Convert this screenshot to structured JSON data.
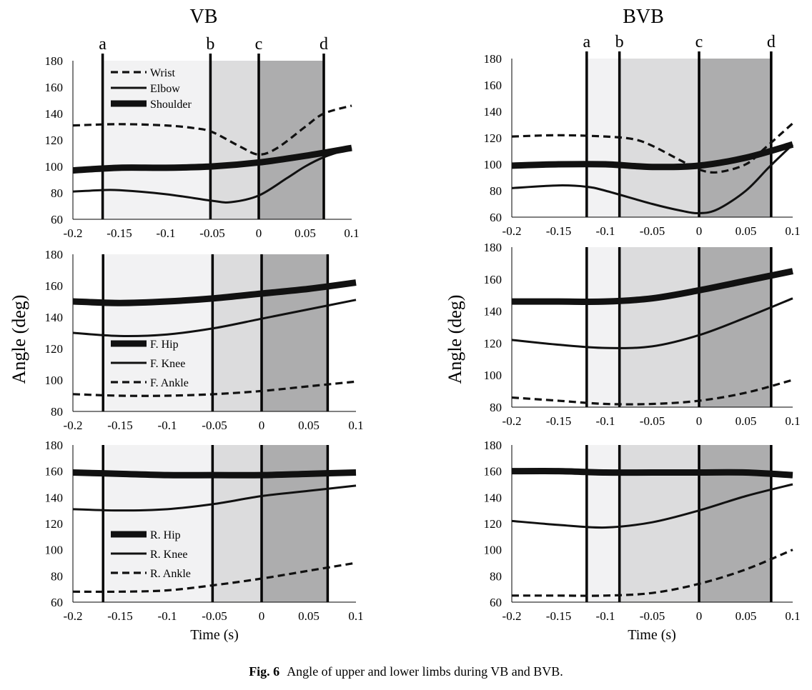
{
  "caption": {
    "label": "Fig. 6",
    "text": "Angle of upper and lower limbs during VB and BVB."
  },
  "column_titles": {
    "left": "VB",
    "right": "BVB"
  },
  "shared_labels": {
    "ylabel": "Angle (deg)",
    "xlabel": "Time (s)"
  },
  "phase_marker_labels": [
    "a",
    "b",
    "c",
    "d"
  ],
  "phase_colors": [
    "#f2f2f3",
    "#dcdcdd",
    "#adadae"
  ],
  "chart_data": [
    {
      "id": "vb-upper",
      "type": "line",
      "xlim": [
        -0.2,
        0.1
      ],
      "ylim": [
        60,
        180
      ],
      "xticks": [
        -0.2,
        -0.15,
        -0.1,
        -0.05,
        0,
        0.05,
        0.1
      ],
      "xtick_labels": [
        "-0.2",
        "-0.15",
        "-0.1",
        "-0.05",
        "0",
        "0.05",
        "0.1"
      ],
      "yticks": [
        60,
        80,
        100,
        120,
        140,
        160,
        180
      ],
      "phase_markers": [
        -0.168,
        -0.052,
        0,
        0.07
      ],
      "show_marker_labels": true,
      "legend": {
        "position": "top-left"
      },
      "series": [
        {
          "name": "Wrist",
          "style": "dashed",
          "x": [
            -0.2,
            -0.15,
            -0.1,
            -0.07,
            -0.05,
            -0.02,
            0,
            0.02,
            0.05,
            0.07,
            0.1
          ],
          "y": [
            131,
            132,
            131,
            129,
            126,
            115,
            109,
            114,
            130,
            140,
            146
          ]
        },
        {
          "name": "Elbow",
          "style": "thin",
          "x": [
            -0.2,
            -0.17,
            -0.15,
            -0.1,
            -0.05,
            -0.03,
            0,
            0.03,
            0.05,
            0.07,
            0.1
          ],
          "y": [
            81,
            82,
            82,
            79,
            74,
            73,
            78,
            91,
            100,
            107,
            114
          ]
        },
        {
          "name": "Shoulder",
          "style": "thick",
          "x": [
            -0.2,
            -0.15,
            -0.1,
            -0.05,
            0,
            0.05,
            0.1
          ],
          "y": [
            97,
            99,
            99,
            100,
            103,
            108,
            114
          ]
        }
      ]
    },
    {
      "id": "bvb-upper",
      "type": "line",
      "xlim": [
        -0.2,
        0.1
      ],
      "ylim": [
        60,
        180
      ],
      "xticks": [
        -0.2,
        -0.15,
        -0.1,
        -0.05,
        0,
        0.05,
        0.1
      ],
      "xtick_labels": [
        "-0.2",
        "-0.15",
        "-0.1",
        "-0.05",
        "0",
        "0.05",
        "0.1"
      ],
      "yticks": [
        60,
        80,
        100,
        120,
        140,
        160,
        180
      ],
      "phase_markers": [
        -0.12,
        -0.085,
        0,
        0.077
      ],
      "show_marker_labels": true,
      "series": [
        {
          "name": "Wrist",
          "style": "dashed",
          "x": [
            -0.2,
            -0.15,
            -0.1,
            -0.07,
            -0.05,
            -0.02,
            0,
            0.02,
            0.05,
            0.07,
            0.1
          ],
          "y": [
            121,
            122,
            121,
            119,
            114,
            103,
            96,
            94,
            100,
            112,
            131
          ]
        },
        {
          "name": "Elbow",
          "style": "thin",
          "x": [
            -0.2,
            -0.15,
            -0.12,
            -0.1,
            -0.05,
            -0.02,
            0,
            0.02,
            0.05,
            0.075,
            0.1
          ],
          "y": [
            82,
            84,
            83,
            80,
            70,
            65,
            63,
            66,
            80,
            98,
            115
          ]
        },
        {
          "name": "Shoulder",
          "style": "thick",
          "x": [
            -0.2,
            -0.15,
            -0.1,
            -0.05,
            0,
            0.05,
            0.1
          ],
          "y": [
            99,
            100,
            100,
            98,
            99,
            105,
            115
          ]
        }
      ]
    },
    {
      "id": "vb-front-leg",
      "type": "line",
      "xlim": [
        -0.2,
        0.1
      ],
      "ylim": [
        80,
        180
      ],
      "xticks": [
        -0.2,
        -0.15,
        -0.1,
        -0.05,
        0,
        0.05,
        0.1
      ],
      "xtick_labels": [
        "-0.2",
        "-0.15",
        "-0.1",
        "-0.05",
        "0",
        "0.05",
        "0.1"
      ],
      "yticks": [
        80,
        100,
        120,
        140,
        160,
        180
      ],
      "phase_markers": [
        -0.168,
        -0.052,
        0,
        0.07
      ],
      "show_marker_labels": false,
      "legend": {
        "position": "bottom-left"
      },
      "series": [
        {
          "name": "F. Hip",
          "style": "thick",
          "x": [
            -0.2,
            -0.15,
            -0.1,
            -0.05,
            0,
            0.05,
            0.1
          ],
          "y": [
            150,
            149,
            150,
            152,
            155,
            158,
            162
          ]
        },
        {
          "name": "F. Knee",
          "style": "thin",
          "x": [
            -0.2,
            -0.15,
            -0.1,
            -0.05,
            0,
            0.05,
            0.1
          ],
          "y": [
            130,
            128,
            129,
            133,
            139,
            145,
            151
          ]
        },
        {
          "name": "F. Ankle",
          "style": "dashed",
          "x": [
            -0.2,
            -0.15,
            -0.1,
            -0.05,
            0,
            0.05,
            0.1
          ],
          "y": [
            91,
            90,
            90,
            91,
            93,
            96,
            99
          ]
        }
      ]
    },
    {
      "id": "bvb-front-leg",
      "type": "line",
      "xlim": [
        -0.2,
        0.1
      ],
      "ylim": [
        80,
        180
      ],
      "xticks": [
        -0.2,
        -0.15,
        -0.1,
        -0.05,
        0,
        0.05,
        0.1
      ],
      "xtick_labels": [
        "-0.2",
        "-0.15",
        "-0.1",
        "-0.05",
        "0",
        "0.05",
        "0.1"
      ],
      "yticks": [
        80,
        100,
        120,
        140,
        160,
        180
      ],
      "phase_markers": [
        -0.12,
        -0.085,
        0,
        0.077
      ],
      "show_marker_labels": false,
      "series": [
        {
          "name": "F. Hip",
          "style": "thick",
          "x": [
            -0.2,
            -0.15,
            -0.1,
            -0.05,
            0,
            0.05,
            0.1
          ],
          "y": [
            146,
            146,
            146,
            148,
            153,
            159,
            165
          ]
        },
        {
          "name": "F. Knee",
          "style": "thin",
          "x": [
            -0.2,
            -0.15,
            -0.1,
            -0.05,
            0,
            0.05,
            0.1
          ],
          "y": [
            122,
            119,
            117,
            118,
            125,
            136,
            148
          ]
        },
        {
          "name": "F. Ankle",
          "style": "dashed",
          "x": [
            -0.2,
            -0.15,
            -0.1,
            -0.05,
            0,
            0.05,
            0.1
          ],
          "y": [
            86,
            84,
            82,
            82,
            84,
            89,
            97
          ]
        }
      ]
    },
    {
      "id": "vb-rear-leg",
      "type": "line",
      "xlim": [
        -0.2,
        0.1
      ],
      "ylim": [
        60,
        180
      ],
      "xticks": [
        -0.2,
        -0.15,
        -0.1,
        -0.05,
        0,
        0.05,
        0.1
      ],
      "xtick_labels": [
        "-0.2",
        "-0.15",
        "-0.1",
        "-0.05",
        "0",
        "0.05",
        "0.1"
      ],
      "yticks": [
        60,
        80,
        100,
        120,
        140,
        160,
        180
      ],
      "phase_markers": [
        -0.168,
        -0.052,
        0,
        0.07
      ],
      "show_marker_labels": false,
      "legend": {
        "position": "bottom-left"
      },
      "series": [
        {
          "name": "R. Hip",
          "style": "thick",
          "x": [
            -0.2,
            -0.15,
            -0.1,
            -0.05,
            0,
            0.05,
            0.1
          ],
          "y": [
            159,
            158,
            157,
            157,
            157,
            158,
            159
          ]
        },
        {
          "name": "R. Knee",
          "style": "thin",
          "x": [
            -0.2,
            -0.15,
            -0.1,
            -0.05,
            0,
            0.05,
            0.1
          ],
          "y": [
            131,
            130,
            131,
            135,
            141,
            145,
            149
          ]
        },
        {
          "name": "R. Ankle",
          "style": "dashed",
          "x": [
            -0.2,
            -0.15,
            -0.1,
            -0.05,
            0,
            0.05,
            0.1
          ],
          "y": [
            68,
            68,
            69,
            73,
            78,
            84,
            90
          ]
        }
      ]
    },
    {
      "id": "bvb-rear-leg",
      "type": "line",
      "xlim": [
        -0.2,
        0.1
      ],
      "ylim": [
        60,
        180
      ],
      "xticks": [
        -0.2,
        -0.15,
        -0.1,
        -0.05,
        0,
        0.05,
        0.1
      ],
      "xtick_labels": [
        "-0.2",
        "-0.15",
        "-0.1",
        "-0.05",
        "0",
        "0.05",
        "0.1"
      ],
      "yticks": [
        60,
        80,
        100,
        120,
        140,
        160,
        180
      ],
      "phase_markers": [
        -0.12,
        -0.085,
        0,
        0.077
      ],
      "show_marker_labels": false,
      "series": [
        {
          "name": "R. Hip",
          "style": "thick",
          "x": [
            -0.2,
            -0.15,
            -0.1,
            -0.05,
            0,
            0.05,
            0.1
          ],
          "y": [
            160,
            160,
            159,
            159,
            159,
            159,
            157
          ]
        },
        {
          "name": "R. Knee",
          "style": "thin",
          "x": [
            -0.2,
            -0.15,
            -0.1,
            -0.05,
            0,
            0.05,
            0.1
          ],
          "y": [
            122,
            119,
            117,
            121,
            130,
            141,
            150
          ]
        },
        {
          "name": "R. Ankle",
          "style": "dashed",
          "x": [
            -0.2,
            -0.15,
            -0.1,
            -0.05,
            0,
            0.05,
            0.1
          ],
          "y": [
            65,
            65,
            65,
            67,
            74,
            85,
            100
          ]
        }
      ]
    }
  ]
}
